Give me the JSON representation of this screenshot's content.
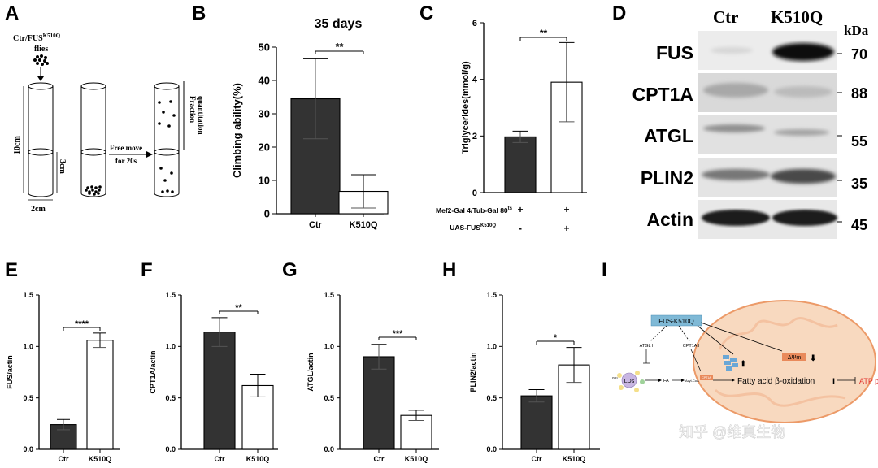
{
  "panel_letters": {
    "a": "A",
    "b": "B",
    "c": "C",
    "d": "D",
    "e": "E",
    "f": "F",
    "g": "G",
    "h": "H",
    "i": "I"
  },
  "colors": {
    "ctr_bar": "#333333",
    "k510q_bar": "#ffffff",
    "axis": "#000000",
    "mito_fill": "#f8d9bf",
    "mito_stroke": "#ec9a68",
    "fus_box": "#7fb9d6",
    "red_text": "#e0302a"
  },
  "panel_a": {
    "flies_label_prefix": "Ctr/FUS",
    "flies_label_sup": "K510Q",
    "flies_label_line2": "flies",
    "height_label": "10cm",
    "width_label": "2cm",
    "mark_label": "3cm",
    "move_label_1": "Free move",
    "move_label_2": "for 20s",
    "fraction_label_1": "Fraction",
    "fraction_label_2": "quantitation"
  },
  "panel_d": {
    "col_ctr": "Ctr",
    "col_k510q": "K510Q",
    "kda": "kDa",
    "rows": [
      {
        "name": "FUS",
        "kda": "70"
      },
      {
        "name": "CPT1A",
        "kda": "88"
      },
      {
        "name": "ATGL",
        "kda": "55"
      },
      {
        "name": "PLIN2",
        "kda": "35"
      },
      {
        "name": "Actin",
        "kda": "45"
      }
    ]
  },
  "panel_i": {
    "fus_label": "FUS-K510Q",
    "atgl": "ATGL",
    "cpt1a": "CPT1A",
    "lds": "LDs",
    "fa": "FA",
    "acylcoa": "Acyl-CoA",
    "cpt1a_small": "CPT1A",
    "beta_ox": "Fatty acid β-oxidation",
    "atp": "ATP production",
    "ros": "ROS",
    "dpsi": "ΔΨm",
    "up_arrow": "⬆",
    "down_arrow": "⬇",
    "roman": "I",
    "down_small": "⬇",
    "plin": "PLIN",
    "watermark": "知乎 @维真生物"
  },
  "chart_data": [
    {
      "id": "B",
      "type": "bar",
      "title": "35 days",
      "ylabel": "Climbing ability(%)",
      "xlabel": "",
      "categories": [
        "Ctr",
        "K510Q"
      ],
      "values": [
        34.5,
        6.7
      ],
      "errors": [
        12,
        5
      ],
      "ylim": [
        0,
        50
      ],
      "yticks": [
        "0",
        "10",
        "20",
        "30",
        "40",
        "50"
      ],
      "significance": "**"
    },
    {
      "id": "C",
      "type": "bar",
      "title": "",
      "ylabel": "Triglycerides(mmol/g)",
      "xlabel": "",
      "categories": [
        "",
        ""
      ],
      "values": [
        1.97,
        3.9
      ],
      "errors": [
        0.2,
        1.4
      ],
      "ylim": [
        0,
        6
      ],
      "yticks": [
        "0",
        "2",
        "4",
        "6"
      ],
      "significance": "**",
      "row1_prefix": "Mef2-Gal 4/Tub-Gal 80",
      "row1_sup": "ts",
      "row1_values": [
        "+",
        "+"
      ],
      "row2_prefix": "UAS-FUS",
      "row2_sup": "K510Q",
      "row2_values": [
        "-",
        "+"
      ]
    },
    {
      "id": "E",
      "type": "bar",
      "title": "",
      "ylabel": "FUS/actin",
      "xlabel": "",
      "categories": [
        "Ctr",
        "K510Q"
      ],
      "values": [
        0.24,
        1.06
      ],
      "errors": [
        0.05,
        0.07
      ],
      "ylim": [
        0,
        1.5
      ],
      "yticks": [
        "0.0",
        "0.5",
        "1.0",
        "1.5"
      ],
      "significance": "****"
    },
    {
      "id": "F",
      "type": "bar",
      "title": "",
      "ylabel": "CPT1A/actin",
      "xlabel": "",
      "categories": [
        "Ctr",
        "K510Q"
      ],
      "values": [
        1.14,
        0.62
      ],
      "errors": [
        0.14,
        0.11
      ],
      "ylim": [
        0,
        1.5
      ],
      "yticks": [
        "0.0",
        "0.5",
        "1.0",
        "1.5"
      ],
      "significance": "**"
    },
    {
      "id": "G",
      "type": "bar",
      "title": "",
      "ylabel": "ATGL/actin",
      "xlabel": "",
      "categories": [
        "Ctr",
        "K510Q"
      ],
      "values": [
        0.9,
        0.33
      ],
      "errors": [
        0.12,
        0.05
      ],
      "ylim": [
        0,
        1.5
      ],
      "yticks": [
        "0.0",
        "0.5",
        "1.0",
        "1.5"
      ],
      "significance": "***"
    },
    {
      "id": "H",
      "type": "bar",
      "title": "",
      "ylabel": "PLIN2/actin",
      "xlabel": "",
      "categories": [
        "Ctr",
        "K510Q"
      ],
      "values": [
        0.52,
        0.82
      ],
      "errors": [
        0.06,
        0.17
      ],
      "ylim": [
        0,
        1.5
      ],
      "yticks": [
        "0.0",
        "0.5",
        "1.0",
        "1.5"
      ],
      "significance": "*"
    }
  ]
}
